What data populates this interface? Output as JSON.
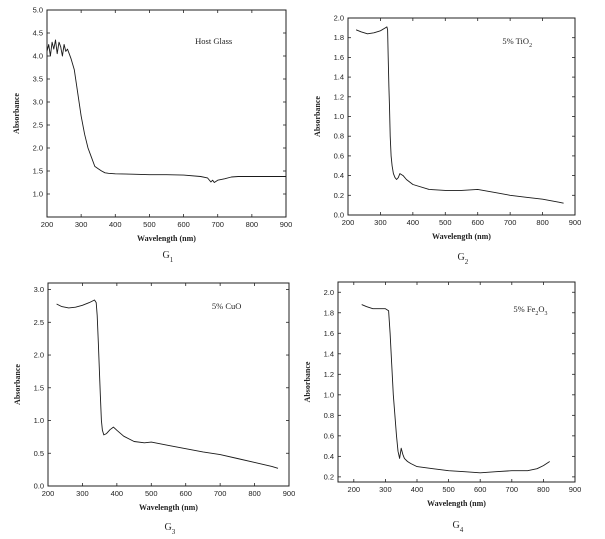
{
  "chart_data": [
    {
      "type": "line",
      "panel": "G1",
      "annotation": "Host Glass",
      "caption_main": "G",
      "caption_sub": "1",
      "xlabel": "Wavelength (nm)",
      "ylabel": "Absorbance",
      "xlim": [
        200,
        900
      ],
      "ylim": [
        0.5,
        5.0
      ],
      "xticks": [
        200,
        300,
        400,
        500,
        600,
        700,
        800,
        900
      ],
      "yticks": [
        1.0,
        1.5,
        2.0,
        2.5,
        3.0,
        3.5,
        4.0,
        4.5,
        5.0
      ],
      "ytick_labels": [
        "1.0",
        "1.5",
        "2.0",
        "2.5",
        "3.0",
        "3.5",
        "4.0",
        "4.5",
        "5.0"
      ],
      "x": [
        200,
        205,
        210,
        215,
        220,
        225,
        230,
        235,
        240,
        245,
        250,
        255,
        260,
        265,
        270,
        280,
        290,
        300,
        310,
        320,
        330,
        340,
        350,
        360,
        370,
        380,
        400,
        450,
        500,
        550,
        600,
        650,
        670,
        680,
        685,
        690,
        700,
        720,
        740,
        760,
        800,
        850,
        900
      ],
      "y": [
        4.1,
        4.25,
        4.0,
        4.3,
        4.15,
        4.35,
        4.05,
        4.3,
        4.2,
        4.0,
        4.25,
        4.1,
        4.15,
        4.05,
        3.95,
        3.7,
        3.2,
        2.7,
        2.3,
        2.0,
        1.8,
        1.6,
        1.55,
        1.5,
        1.46,
        1.45,
        1.44,
        1.43,
        1.42,
        1.42,
        1.41,
        1.38,
        1.35,
        1.26,
        1.3,
        1.25,
        1.3,
        1.33,
        1.37,
        1.38,
        1.38,
        1.38,
        1.38
      ]
    },
    {
      "type": "line",
      "panel": "G2",
      "annotation_main": "5% TiO",
      "annotation_sub": "2",
      "caption_main": "G",
      "caption_sub": "2",
      "xlabel": "Wavelength (nm)",
      "ylabel": "Absorbance",
      "xlim": [
        200,
        900
      ],
      "ylim": [
        0.0,
        2.0
      ],
      "xticks": [
        200,
        300,
        400,
        500,
        600,
        700,
        800,
        900
      ],
      "yticks": [
        0.0,
        0.2,
        0.4,
        0.6,
        0.8,
        1.0,
        1.2,
        1.4,
        1.6,
        1.8,
        2.0
      ],
      "ytick_labels": [
        "0.0",
        "0.2",
        "0.4",
        "0.6",
        "0.8",
        "1.0",
        "1.2",
        "1.4",
        "1.6",
        "1.8",
        "2.0"
      ],
      "x": [
        225,
        240,
        260,
        280,
        300,
        315,
        320,
        322,
        324,
        326,
        328,
        330,
        333,
        336,
        340,
        345,
        350,
        355,
        360,
        370,
        380,
        400,
        450,
        500,
        550,
        600,
        650,
        700,
        750,
        800,
        850,
        865
      ],
      "y": [
        1.88,
        1.86,
        1.84,
        1.85,
        1.87,
        1.9,
        1.91,
        1.88,
        1.6,
        1.3,
        1.1,
        0.8,
        0.6,
        0.5,
        0.42,
        0.38,
        0.36,
        0.38,
        0.42,
        0.4,
        0.36,
        0.31,
        0.26,
        0.25,
        0.25,
        0.26,
        0.23,
        0.2,
        0.18,
        0.16,
        0.13,
        0.12
      ]
    },
    {
      "type": "line",
      "panel": "G3",
      "annotation": "5% CuO",
      "caption_main": "G",
      "caption_sub": "3",
      "xlabel": "Wavelength (nm)",
      "ylabel": "Absorbance",
      "xlim": [
        200,
        900
      ],
      "ylim": [
        0.0,
        3.1
      ],
      "xticks": [
        200,
        300,
        400,
        500,
        600,
        700,
        800,
        900
      ],
      "yticks": [
        0.0,
        0.5,
        1.0,
        1.5,
        2.0,
        2.5,
        3.0
      ],
      "ytick_labels": [
        "0.0",
        "0.5",
        "1.0",
        "1.5",
        "2.0",
        "2.5",
        "3.0"
      ],
      "x": [
        225,
        240,
        260,
        280,
        300,
        320,
        335,
        340,
        343,
        346,
        349,
        352,
        355,
        358,
        362,
        370,
        380,
        390,
        400,
        420,
        450,
        480,
        500,
        550,
        600,
        650,
        700,
        750,
        800,
        850,
        868
      ],
      "y": [
        2.78,
        2.74,
        2.72,
        2.73,
        2.76,
        2.8,
        2.84,
        2.8,
        2.6,
        2.2,
        1.8,
        1.4,
        1.0,
        0.85,
        0.78,
        0.8,
        0.86,
        0.9,
        0.85,
        0.76,
        0.68,
        0.66,
        0.67,
        0.62,
        0.57,
        0.52,
        0.48,
        0.42,
        0.36,
        0.3,
        0.27
      ]
    },
    {
      "type": "line",
      "panel": "G4",
      "annotation_main": "5% Fe",
      "annotation_sub1": "2",
      "annotation_mid": "O",
      "annotation_sub2": "3",
      "caption_main": "G",
      "caption_sub": "4",
      "xlabel": "Wavelength (nm)",
      "ylabel": "Absorbance",
      "xlim": [
        150,
        900
      ],
      "ylim": [
        0.15,
        2.1
      ],
      "xticks": [
        200,
        300,
        400,
        500,
        600,
        700,
        800,
        900
      ],
      "yticks": [
        0.2,
        0.4,
        0.6,
        0.8,
        1.0,
        1.2,
        1.4,
        1.6,
        1.8,
        2.0
      ],
      "ytick_labels": [
        "0.2",
        "0.4",
        "0.6",
        "0.8",
        "1.0",
        "1.2",
        "1.4",
        "1.6",
        "1.8",
        "2.0"
      ],
      "x": [
        225,
        240,
        260,
        280,
        300,
        310,
        315,
        320,
        325,
        330,
        335,
        340,
        345,
        350,
        355,
        360,
        370,
        380,
        400,
        450,
        500,
        550,
        600,
        650,
        700,
        750,
        780,
        800,
        820
      ],
      "y": [
        1.88,
        1.86,
        1.84,
        1.84,
        1.84,
        1.82,
        1.6,
        1.3,
        1.0,
        0.8,
        0.6,
        0.45,
        0.38,
        0.48,
        0.42,
        0.38,
        0.35,
        0.33,
        0.3,
        0.28,
        0.26,
        0.25,
        0.24,
        0.25,
        0.26,
        0.26,
        0.28,
        0.31,
        0.35
      ]
    }
  ]
}
